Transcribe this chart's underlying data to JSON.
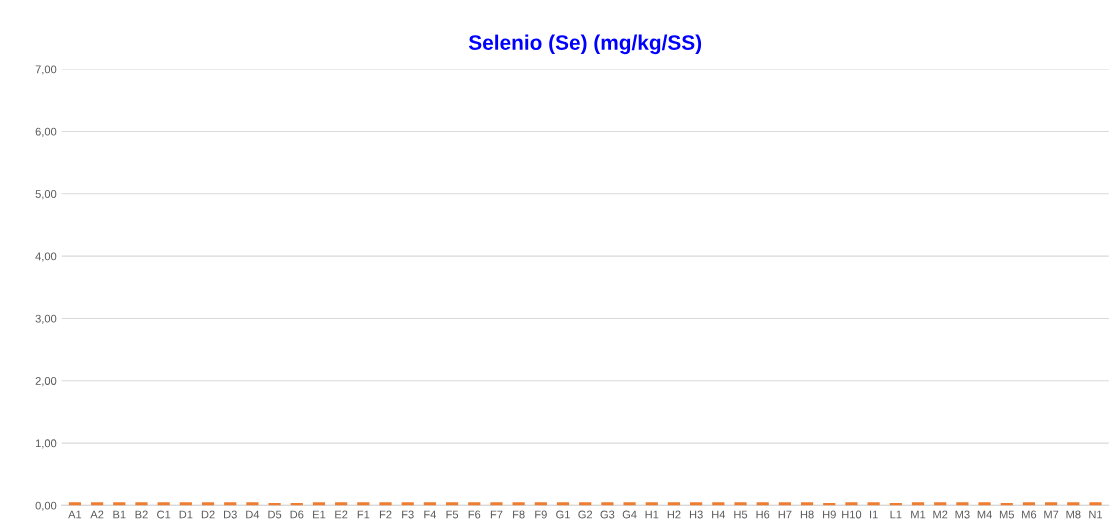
{
  "chart_data": {
    "type": "bar",
    "title": "Selenio (Se) (mg/kg/SS)",
    "categories": [
      "A1",
      "A2",
      "B1",
      "B2",
      "C1",
      "D1",
      "D2",
      "D3",
      "D4",
      "D5",
      "D6",
      "E1",
      "E2",
      "F1",
      "F2",
      "F3",
      "F4",
      "F5",
      "F6",
      "F7",
      "F8",
      "F9",
      "G1",
      "G2",
      "G3",
      "G4",
      "H1",
      "H2",
      "H3",
      "H4",
      "H5",
      "H6",
      "H7",
      "H8",
      "H9",
      "H10",
      "I1",
      "L1",
      "M1",
      "M2",
      "M3",
      "M4",
      "M5",
      "M6",
      "M7",
      "M8",
      "N1"
    ],
    "values": [
      0.05,
      0.05,
      0.05,
      0.05,
      0.05,
      0.05,
      0.05,
      0.05,
      0.05,
      0.04,
      0.04,
      0.05,
      0.05,
      0.05,
      0.05,
      0.05,
      0.05,
      0.05,
      0.05,
      0.05,
      0.05,
      0.05,
      0.05,
      0.05,
      0.05,
      0.05,
      0.05,
      0.05,
      0.05,
      0.05,
      0.05,
      0.05,
      0.05,
      0.05,
      0.04,
      0.05,
      0.05,
      0.04,
      0.05,
      0.05,
      0.05,
      0.05,
      0.04,
      0.05,
      0.05,
      0.05,
      0.05
    ],
    "color": "#ed7d31",
    "ylim": [
      0,
      7
    ],
    "yticks": [
      {
        "value": 0,
        "label": "0,00"
      },
      {
        "value": 1,
        "label": "1,00"
      },
      {
        "value": 2,
        "label": "2,00"
      },
      {
        "value": 3,
        "label": "3,00"
      },
      {
        "value": 4,
        "label": "4,00"
      },
      {
        "value": 5,
        "label": "5,00"
      },
      {
        "value": 6,
        "label": "6,00"
      },
      {
        "value": 7,
        "label": "7,00"
      }
    ],
    "grid": "y"
  }
}
